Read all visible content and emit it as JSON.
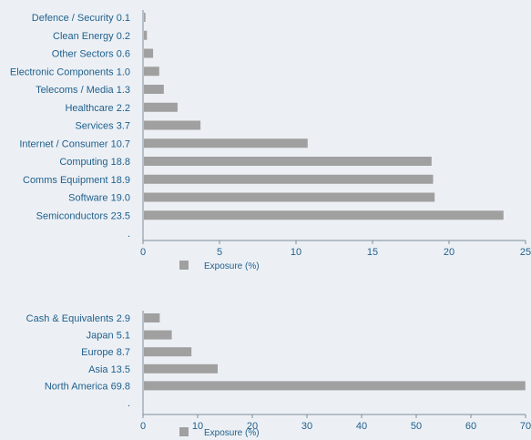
{
  "colors": {
    "bar": "#a0a0a0",
    "text": "#1f5f8b",
    "axis": "#7f8c99",
    "background": "#ecf0f5"
  },
  "chart_data": [
    {
      "type": "bar",
      "orientation": "horizontal",
      "categories": [
        "Defence / Security 0.1",
        "Clean Energy 0.2",
        "Other Sectors 0.6",
        "Electronic Components 1.0",
        "Telecoms / Media 1.3",
        "Healthcare 2.2",
        "Services 3.7",
        "Internet / Consumer 10.7",
        "Computing 18.8",
        "Comms Equipment 18.9",
        "Software 19.0",
        "Semiconductors 23.5",
        "."
      ],
      "values": [
        0.1,
        0.2,
        0.6,
        1.0,
        1.3,
        2.2,
        3.7,
        10.7,
        18.8,
        18.9,
        19.0,
        23.5,
        0
      ],
      "xlim": [
        0,
        25
      ],
      "xticks": [
        0,
        5,
        10,
        15,
        20,
        25
      ],
      "legend": "Exposure (%)",
      "legend_position": "bottom-center",
      "grid": false
    },
    {
      "type": "bar",
      "orientation": "horizontal",
      "categories": [
        "Cash & Equivalents 2.9",
        "Japan 5.1",
        "Europe 8.7",
        "Asia 13.5",
        "North America 69.8",
        "."
      ],
      "values": [
        2.9,
        5.1,
        8.7,
        13.5,
        69.8,
        0
      ],
      "xlim": [
        0,
        70
      ],
      "xticks": [
        0,
        10,
        20,
        30,
        40,
        50,
        60,
        70
      ],
      "legend": "Exposure (%)",
      "legend_position": "bottom-center",
      "grid": false
    }
  ]
}
